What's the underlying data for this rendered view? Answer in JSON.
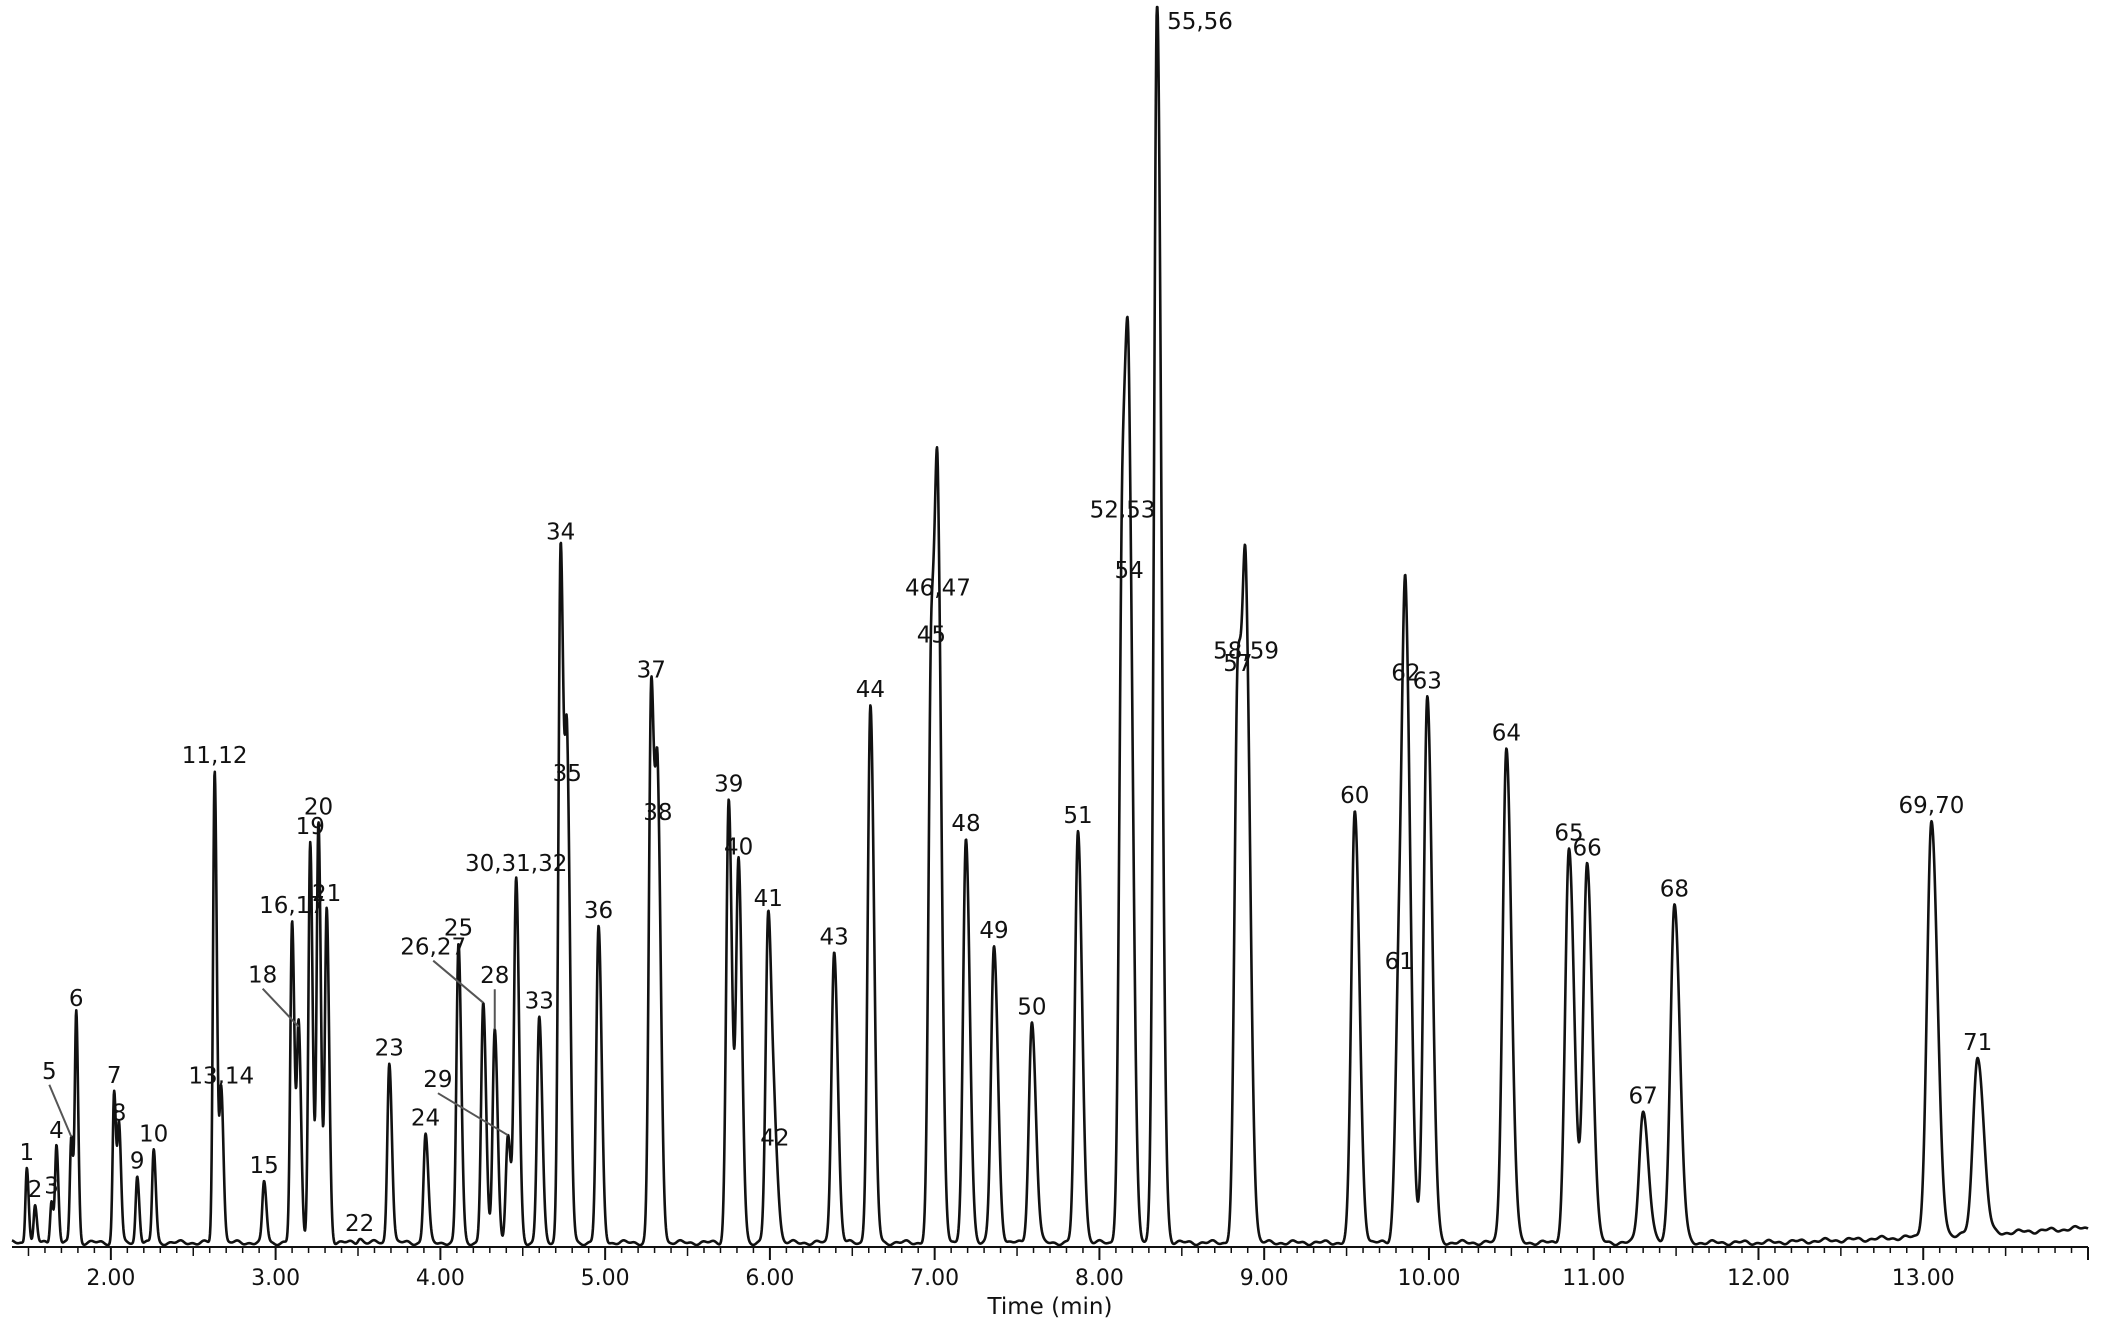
{
  "chart_data": {
    "type": "line",
    "title": "",
    "xlabel": "Time (min)",
    "ylabel": "",
    "xlim": [
      1.4,
      14.0
    ],
    "ylim": [
      0,
      100
    ],
    "grid": false,
    "legend": "none",
    "line_color": "#111111",
    "x_ticks": [
      {
        "value": 2.0,
        "label": "2.00"
      },
      {
        "value": 3.0,
        "label": "3.00"
      },
      {
        "value": 4.0,
        "label": "4.00"
      },
      {
        "value": 5.0,
        "label": "5.00"
      },
      {
        "value": 6.0,
        "label": "6.00"
      },
      {
        "value": 7.0,
        "label": "7.00"
      },
      {
        "value": 8.0,
        "label": "8.00"
      },
      {
        "value": 9.0,
        "label": "9.00"
      },
      {
        "value": 10.0,
        "label": "10.00"
      },
      {
        "value": 11.0,
        "label": "11.00"
      },
      {
        "value": 12.0,
        "label": "12.00"
      },
      {
        "value": 13.0,
        "label": "13.00"
      }
    ],
    "peaks": [
      {
        "label": "1",
        "x": 1.49,
        "y": 6.2
      },
      {
        "label": "2",
        "x": 1.54,
        "y": 2.9
      },
      {
        "label": "3",
        "x": 1.64,
        "y": 3.5
      },
      {
        "label": "4",
        "x": 1.67,
        "y": 7.8
      },
      {
        "label": "5",
        "x": 1.76,
        "y": 8.5
      },
      {
        "label": "6",
        "x": 1.79,
        "y": 18.5
      },
      {
        "label": "7",
        "x": 2.02,
        "y": 12.2
      },
      {
        "label": "8",
        "x": 2.05,
        "y": 9.2
      },
      {
        "label": "9",
        "x": 2.16,
        "y": 5.4
      },
      {
        "label": "10",
        "x": 2.26,
        "y": 7.5
      },
      {
        "label": "11,12",
        "x": 2.63,
        "y": 38.0
      },
      {
        "label": "13,14",
        "x": 2.67,
        "y": 12.4
      },
      {
        "label": "15",
        "x": 2.93,
        "y": 4.9
      },
      {
        "label": "16,17",
        "x": 3.1,
        "y": 25.8
      },
      {
        "label": "18",
        "x": 3.14,
        "y": 17.5
      },
      {
        "label": "19",
        "x": 3.21,
        "y": 32.4
      },
      {
        "label": "20",
        "x": 3.26,
        "y": 33.7
      },
      {
        "label": "21",
        "x": 3.31,
        "y": 26.9
      },
      {
        "label": "22",
        "x": 3.51,
        "y": 0.4
      },
      {
        "label": "23",
        "x": 3.69,
        "y": 14.6
      },
      {
        "label": "24",
        "x": 3.91,
        "y": 8.8
      },
      {
        "label": "25",
        "x": 4.11,
        "y": 24.1
      },
      {
        "label": "26,27",
        "x": 4.26,
        "y": 19.3
      },
      {
        "label": "28",
        "x": 4.33,
        "y": 17.3
      },
      {
        "label": "29",
        "x": 4.41,
        "y": 8.6
      },
      {
        "label": "30,31,32",
        "x": 4.46,
        "y": 29.3
      },
      {
        "label": "33",
        "x": 4.6,
        "y": 18.2
      },
      {
        "label": "34",
        "x": 4.73,
        "y": 56.2
      },
      {
        "label": "35",
        "x": 4.77,
        "y": 36.4
      },
      {
        "label": "36",
        "x": 4.96,
        "y": 25.4
      },
      {
        "label": "37",
        "x": 5.28,
        "y": 44.9
      },
      {
        "label": "38",
        "x": 5.32,
        "y": 33.3
      },
      {
        "label": "39",
        "x": 5.75,
        "y": 35.8
      },
      {
        "label": "40",
        "x": 5.81,
        "y": 30.5
      },
      {
        "label": "41",
        "x": 5.99,
        "y": 26.4
      },
      {
        "label": "42",
        "x": 6.03,
        "y": 7.3
      },
      {
        "label": "43",
        "x": 6.39,
        "y": 23.6
      },
      {
        "label": "44",
        "x": 6.61,
        "y": 43.3
      },
      {
        "label": "45",
        "x": 6.98,
        "y": 47.6
      },
      {
        "label": "46,47",
        "x": 7.02,
        "y": 51.5
      },
      {
        "label": "48",
        "x": 7.19,
        "y": 32.5
      },
      {
        "label": "49",
        "x": 7.36,
        "y": 23.9
      },
      {
        "label": "50",
        "x": 7.59,
        "y": 17.8
      },
      {
        "label": "51",
        "x": 7.87,
        "y": 33.1
      },
      {
        "label": "52,53",
        "x": 8.14,
        "y": 57.7
      },
      {
        "label": "54",
        "x": 8.18,
        "y": 52.9
      },
      {
        "label": "55,56",
        "x": 8.35,
        "y": 100.0
      },
      {
        "label": "57",
        "x": 8.84,
        "y": 45.3
      },
      {
        "label": "58,59",
        "x": 8.89,
        "y": 46.4
      },
      {
        "label": "60",
        "x": 9.55,
        "y": 34.8
      },
      {
        "label": "61",
        "x": 9.82,
        "y": 21.5
      },
      {
        "label": "62",
        "x": 9.86,
        "y": 44.5
      },
      {
        "label": "63",
        "x": 9.99,
        "y": 44.0
      },
      {
        "label": "64",
        "x": 10.47,
        "y": 39.9
      },
      {
        "label": "65",
        "x": 10.85,
        "y": 31.8
      },
      {
        "label": "66",
        "x": 10.96,
        "y": 30.6
      },
      {
        "label": "67",
        "x": 11.3,
        "y": 10.6
      },
      {
        "label": "68",
        "x": 11.49,
        "y": 27.4
      },
      {
        "label": "69,70",
        "x": 13.05,
        "y": 33.5
      },
      {
        "label": "71",
        "x": 13.33,
        "y": 14.4
      }
    ]
  }
}
